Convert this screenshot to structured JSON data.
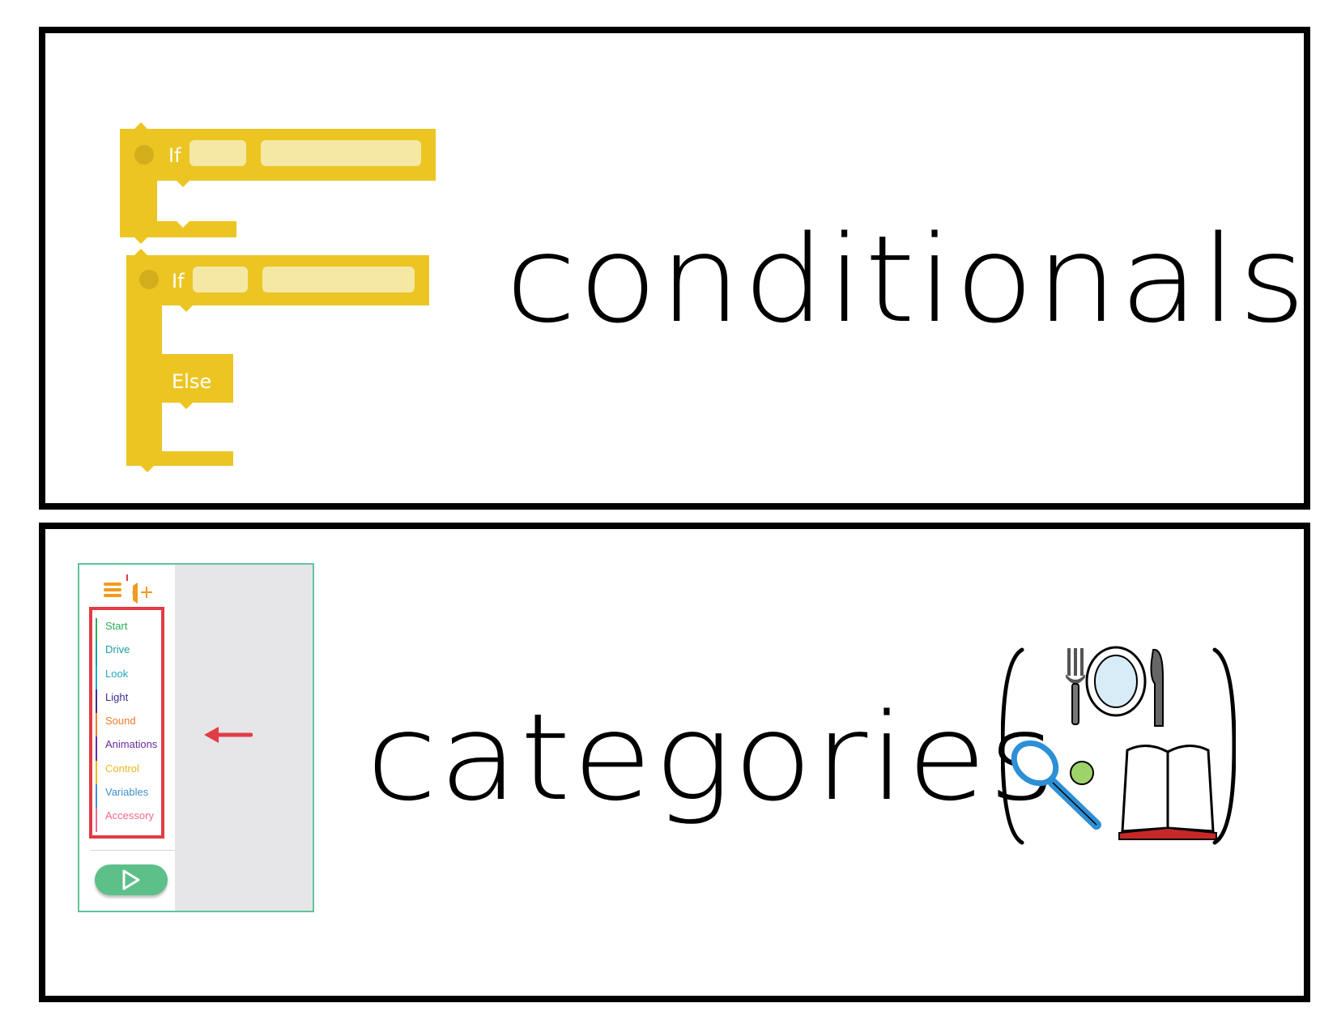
{
  "cards": [
    {
      "word": "conditionals",
      "blocks": {
        "block1": {
          "if_label": "If"
        },
        "block2": {
          "if_label": "If",
          "else_label": "Else"
        },
        "block_color": "#ecc523",
        "slot_color": "#f4e8a4"
      }
    },
    {
      "word": "categories",
      "panel": {
        "categories": [
          {
            "label": "Start",
            "color": "#2eaa55"
          },
          {
            "label": "Drive",
            "color": "#1f9aa0"
          },
          {
            "label": "Look",
            "color": "#25a8c8"
          },
          {
            "label": "Light",
            "color": "#3b2f8a"
          },
          {
            "label": "Sound",
            "color": "#f07a2a"
          },
          {
            "label": "Animations",
            "color": "#6b2a9a"
          },
          {
            "label": "Control",
            "color": "#e8b820"
          },
          {
            "label": "Variables",
            "color": "#3f8fd0"
          },
          {
            "label": "Accessory",
            "color": "#f06a8a"
          }
        ],
        "highlight_color": "#e23c44",
        "run_button_color": "#5cc088",
        "icons": [
          "menu-icon",
          "brand-logo-icon",
          "add-icon",
          "play-icon",
          "arrow-left-icon"
        ]
      },
      "symbol_icons": [
        "fork-icon",
        "plate-icon",
        "knife-icon",
        "racket-icon",
        "ball-icon",
        "book-icon"
      ]
    }
  ]
}
